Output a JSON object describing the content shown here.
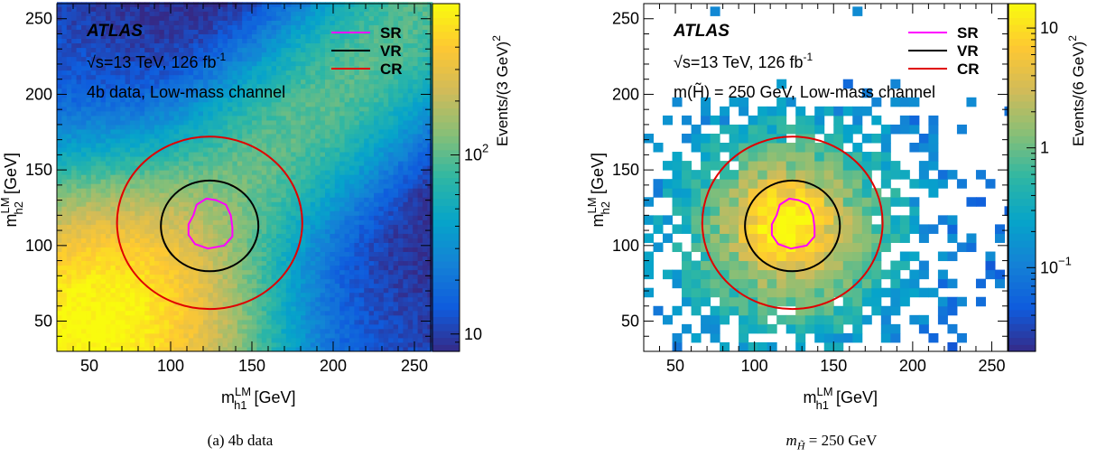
{
  "colors": {
    "sr": "#ff00ff",
    "vr": "#000000",
    "cr": "#e00000",
    "colormap": [
      "#352a87",
      "#0f5cdd",
      "#1481d6",
      "#06a4ca",
      "#2eb7a4",
      "#87bf77",
      "#d1bb59",
      "#fec832",
      "#f9fb0e"
    ]
  },
  "chart_data": [
    {
      "type": "heatmap",
      "caption": "(a) 4b data",
      "atlas_label": "ATLAS",
      "energy_label": "√s=13 TeV, 126 fb",
      "lumi_sup": "-1",
      "sample_label": "4b data, Low-mass channel",
      "xlabel": "m",
      "xlabel_sup": "LM",
      "xlabel_sub": "h1",
      "xlabel_unit": "[GeV]",
      "ylabel": "m",
      "ylabel_sup": "LM",
      "ylabel_sub": "h2",
      "ylabel_unit": "[GeV]",
      "zlabel": "Events/(3 GeV)",
      "zlabel_sup": "2",
      "xlim": [
        30,
        260
      ],
      "ylim": [
        30,
        260
      ],
      "xticks": [
        50,
        100,
        150,
        200,
        250
      ],
      "yticks": [
        50,
        100,
        150,
        200,
        250
      ],
      "zscale": "log",
      "zlim": [
        8,
        700
      ],
      "zticks": [
        {
          "value": 10,
          "label": "10"
        },
        {
          "value": 100,
          "label": "10",
          "sup": "2"
        }
      ],
      "bin_width": 3,
      "legend": [
        {
          "name": "SR",
          "color": "#ff00ff"
        },
        {
          "name": "VR",
          "color": "#000000"
        },
        {
          "name": "CR",
          "color": "#e00000"
        }
      ],
      "regions": {
        "vr": {
          "center": [
            124,
            113
          ],
          "radius": 30
        },
        "cr": {
          "center": [
            124,
            115
          ],
          "radius": 57
        },
        "sr_center": [
          122,
          112
        ]
      },
      "sr_contour": [
        [
          138,
          112
        ],
        [
          137,
          120
        ],
        [
          134,
          127
        ],
        [
          128,
          130
        ],
        [
          122,
          131
        ],
        [
          116,
          127
        ],
        [
          114,
          120
        ],
        [
          111,
          114
        ],
        [
          111,
          107
        ],
        [
          115,
          101
        ],
        [
          123,
          98
        ],
        [
          133,
          100
        ],
        [
          138,
          106
        ]
      ],
      "density_model": "dense 4b data, highest near (55,45), decreasing toward large masses"
    },
    {
      "type": "heatmap",
      "caption": "(b) m = 250 GeV",
      "caption_var": "m",
      "caption_sub": "H̃",
      "caption_rest": " = 250 GeV",
      "atlas_label": "ATLAS",
      "energy_label": "√s=13 TeV, 126 fb",
      "lumi_sup": "-1",
      "sample_label": "m(H̃) = 250 GeV, Low-mass channel",
      "xlabel": "m",
      "xlabel_sup": "LM",
      "xlabel_sub": "h1",
      "xlabel_unit": "[GeV]",
      "ylabel": "m",
      "ylabel_sup": "LM",
      "ylabel_sub": "h2",
      "ylabel_unit": "[GeV]",
      "zlabel": "Events/(6 GeV)",
      "zlabel_sup": "2",
      "xlim": [
        30,
        260
      ],
      "ylim": [
        30,
        260
      ],
      "xticks": [
        50,
        100,
        150,
        200,
        250
      ],
      "yticks": [
        50,
        100,
        150,
        200,
        250
      ],
      "zscale": "log",
      "zlim": [
        0.02,
        16
      ],
      "zticks": [
        {
          "value": 0.1,
          "label": "10",
          "sup": "−1"
        },
        {
          "value": 1,
          "label": "1"
        },
        {
          "value": 10,
          "label": "10"
        }
      ],
      "bin_width": 6,
      "legend": [
        {
          "name": "SR",
          "color": "#ff00ff"
        },
        {
          "name": "VR",
          "color": "#000000"
        },
        {
          "name": "CR",
          "color": "#e00000"
        }
      ],
      "regions": {
        "vr": {
          "center": [
            124,
            113
          ],
          "radius": 30
        },
        "cr": {
          "center": [
            124,
            115
          ],
          "radius": 57
        },
        "sr_center": [
          122,
          112
        ]
      },
      "sr_contour": [
        [
          138,
          112
        ],
        [
          137,
          120
        ],
        [
          134,
          127
        ],
        [
          128,
          130
        ],
        [
          122,
          131
        ],
        [
          116,
          127
        ],
        [
          114,
          120
        ],
        [
          111,
          114
        ],
        [
          111,
          107
        ],
        [
          115,
          101
        ],
        [
          123,
          98
        ],
        [
          133,
          100
        ],
        [
          138,
          106
        ]
      ],
      "density_model": "signal peak near (120,115), sparse bins elsewhere, empty above ~195 GeV"
    }
  ]
}
